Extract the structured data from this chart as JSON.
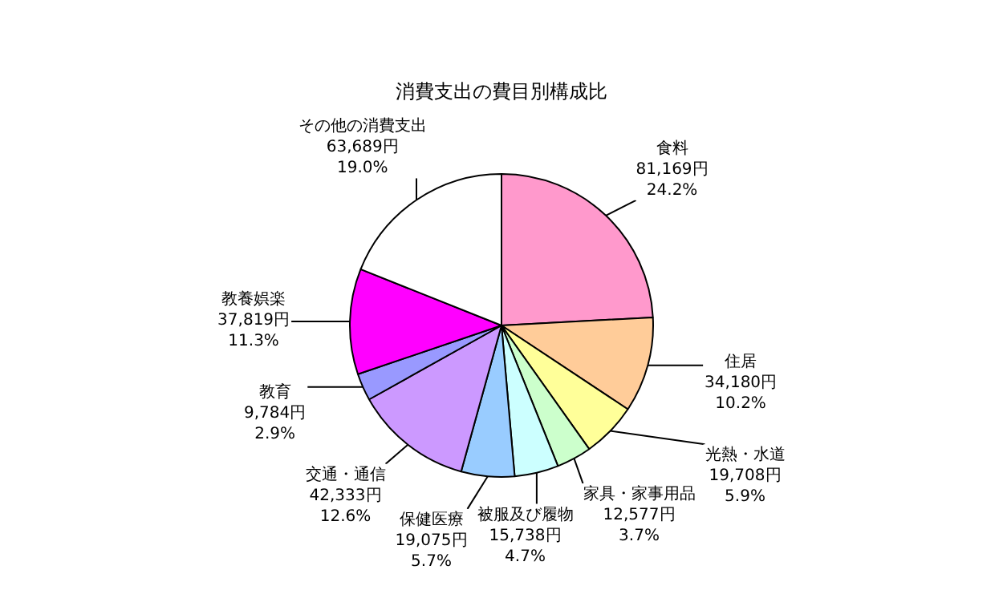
{
  "chart_data": {
    "type": "pie",
    "title": "消費支出の費目別構成比",
    "categories": [
      "食料",
      "住居",
      "光熱・水道",
      "家具・家事用品",
      "被服及び履物",
      "保健医療",
      "交通・通信",
      "教育",
      "教養娯楽",
      "その他の消費支出"
    ],
    "values": [
      81169,
      34180,
      19708,
      12577,
      15738,
      19075,
      42333,
      9784,
      37819,
      63689
    ],
    "value_labels": [
      "81,169円\n24.2%",
      "34,180円\n10.2%",
      "19,708円\n5.9%",
      "12,577円\n3.7%",
      "15,738円\n4.7%",
      "19,075円\n5.7%",
      "42,333円\n12.6%",
      "9,784円\n2.9%",
      "37,819円\n11.3%",
      "63,689円\n19.0%"
    ],
    "colors": [
      "#ff99cc",
      "#ffcc99",
      "#ffff99",
      "#ccffcc",
      "#ccffff",
      "#99ccff",
      "#cc99ff",
      "#9999ff",
      "#ff00ff",
      "#ffffff"
    ],
    "legend": false
  }
}
